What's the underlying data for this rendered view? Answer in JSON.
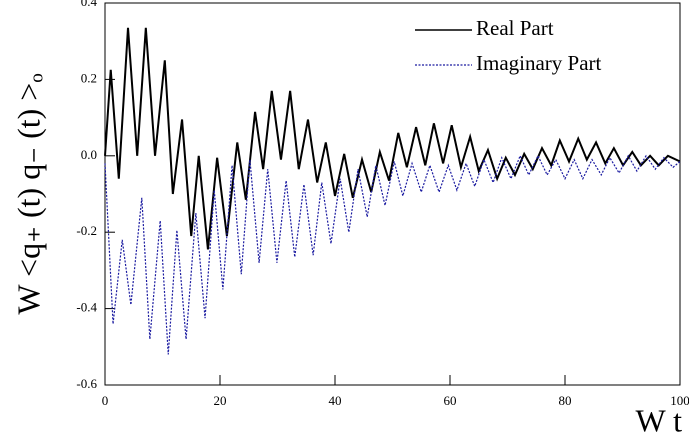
{
  "chart_data": {
    "type": "line",
    "xlabel": "W t",
    "ylabel": "W <q₊ (t) q₋ (t) >ₒ",
    "xlim": [
      0,
      100
    ],
    "xticks": [
      0,
      20,
      40,
      60,
      80,
      100
    ],
    "ylim": [
      -0.6,
      0.4
    ],
    "yticks": [
      -0.6,
      -0.4,
      -0.2,
      {
        "value": 0,
        "label": "0.0"
      },
      0.2,
      0.4
    ],
    "legend": "upper right",
    "series": [
      {
        "name": "Real Part",
        "color": "#000000",
        "dash": "solid",
        "x": [
          0,
          1.0,
          2.4,
          4.0,
          5.6,
          7.1,
          8.7,
          10.4,
          11.8,
          13.4,
          15.0,
          16.3,
          17.9,
          19.5,
          21.2,
          23.0,
          24.5,
          26.1,
          27.5,
          29.0,
          30.6,
          32.2,
          33.7,
          35.3,
          36.9,
          38.4,
          40.0,
          41.6,
          43.1,
          44.7,
          46.3,
          47.8,
          49.4,
          51.0,
          52.5,
          54.1,
          55.7,
          57.2,
          58.8,
          60.3,
          61.9,
          63.5,
          65.0,
          66.6,
          68.2,
          69.7,
          71.3,
          72.9,
          74.4,
          76.0,
          77.6,
          79.1,
          80.7,
          82.3,
          83.8,
          85.4,
          87.0,
          88.5,
          90.1,
          91.7,
          93.2,
          94.8,
          96.3,
          97.9,
          100
        ],
        "values": [
          0,
          0.225,
          -0.06,
          0.335,
          0.0,
          0.335,
          0.0,
          0.25,
          -0.1,
          0.095,
          -0.21,
          0.0,
          -0.245,
          -0.005,
          -0.21,
          0.035,
          -0.115,
          0.115,
          -0.035,
          0.17,
          -0.01,
          0.17,
          -0.035,
          0.095,
          -0.07,
          0.035,
          -0.105,
          0.005,
          -0.11,
          -0.01,
          -0.095,
          0.01,
          -0.065,
          0.06,
          -0.03,
          0.075,
          -0.025,
          0.085,
          -0.02,
          0.08,
          -0.03,
          0.05,
          -0.04,
          0.015,
          -0.06,
          -0.005,
          -0.05,
          0.005,
          -0.035,
          0.02,
          -0.025,
          0.04,
          -0.015,
          0.045,
          -0.01,
          0.035,
          -0.02,
          0.02,
          -0.025,
          0.01,
          -0.025,
          0.0,
          -0.025,
          0.0,
          -0.015
        ]
      },
      {
        "name": "Imaginary Part",
        "color": "#1a1aa0",
        "dash": "dotted",
        "x": [
          0,
          1.4,
          3.0,
          4.5,
          6.4,
          7.8,
          9.6,
          11.0,
          12.5,
          14.1,
          15.8,
          17.4,
          19.0,
          20.5,
          22.1,
          23.7,
          25.2,
          26.8,
          28.3,
          29.9,
          31.5,
          33.0,
          34.6,
          36.2,
          37.7,
          39.3,
          40.9,
          42.4,
          44.0,
          45.6,
          47.1,
          48.7,
          50.3,
          51.8,
          53.4,
          55.0,
          56.5,
          58.1,
          59.7,
          61.2,
          62.8,
          64.3,
          65.9,
          67.5,
          69.0,
          70.6,
          72.2,
          73.7,
          75.3,
          76.9,
          78.4,
          80.0,
          81.6,
          83.1,
          84.7,
          86.3,
          87.8,
          89.4,
          91.0,
          92.5,
          94.1,
          95.7,
          97.2,
          98.8,
          100
        ],
        "values": [
          -0.02,
          -0.44,
          -0.22,
          -0.39,
          -0.11,
          -0.48,
          -0.17,
          -0.52,
          -0.195,
          -0.48,
          -0.15,
          -0.425,
          -0.09,
          -0.35,
          -0.025,
          -0.31,
          -0.01,
          -0.28,
          -0.035,
          -0.28,
          -0.065,
          -0.265,
          -0.075,
          -0.26,
          -0.07,
          -0.23,
          -0.06,
          -0.2,
          -0.035,
          -0.16,
          -0.025,
          -0.13,
          -0.015,
          -0.105,
          -0.02,
          -0.095,
          -0.025,
          -0.095,
          -0.025,
          -0.09,
          -0.02,
          -0.08,
          -0.01,
          -0.07,
          -0.005,
          -0.06,
          0.0,
          -0.05,
          0.0,
          -0.05,
          -0.01,
          -0.06,
          -0.01,
          -0.06,
          -0.01,
          -0.05,
          -0.005,
          -0.045,
          0.0,
          -0.04,
          0.0,
          -0.035,
          -0.005,
          -0.03,
          -0.015
        ]
      }
    ]
  }
}
